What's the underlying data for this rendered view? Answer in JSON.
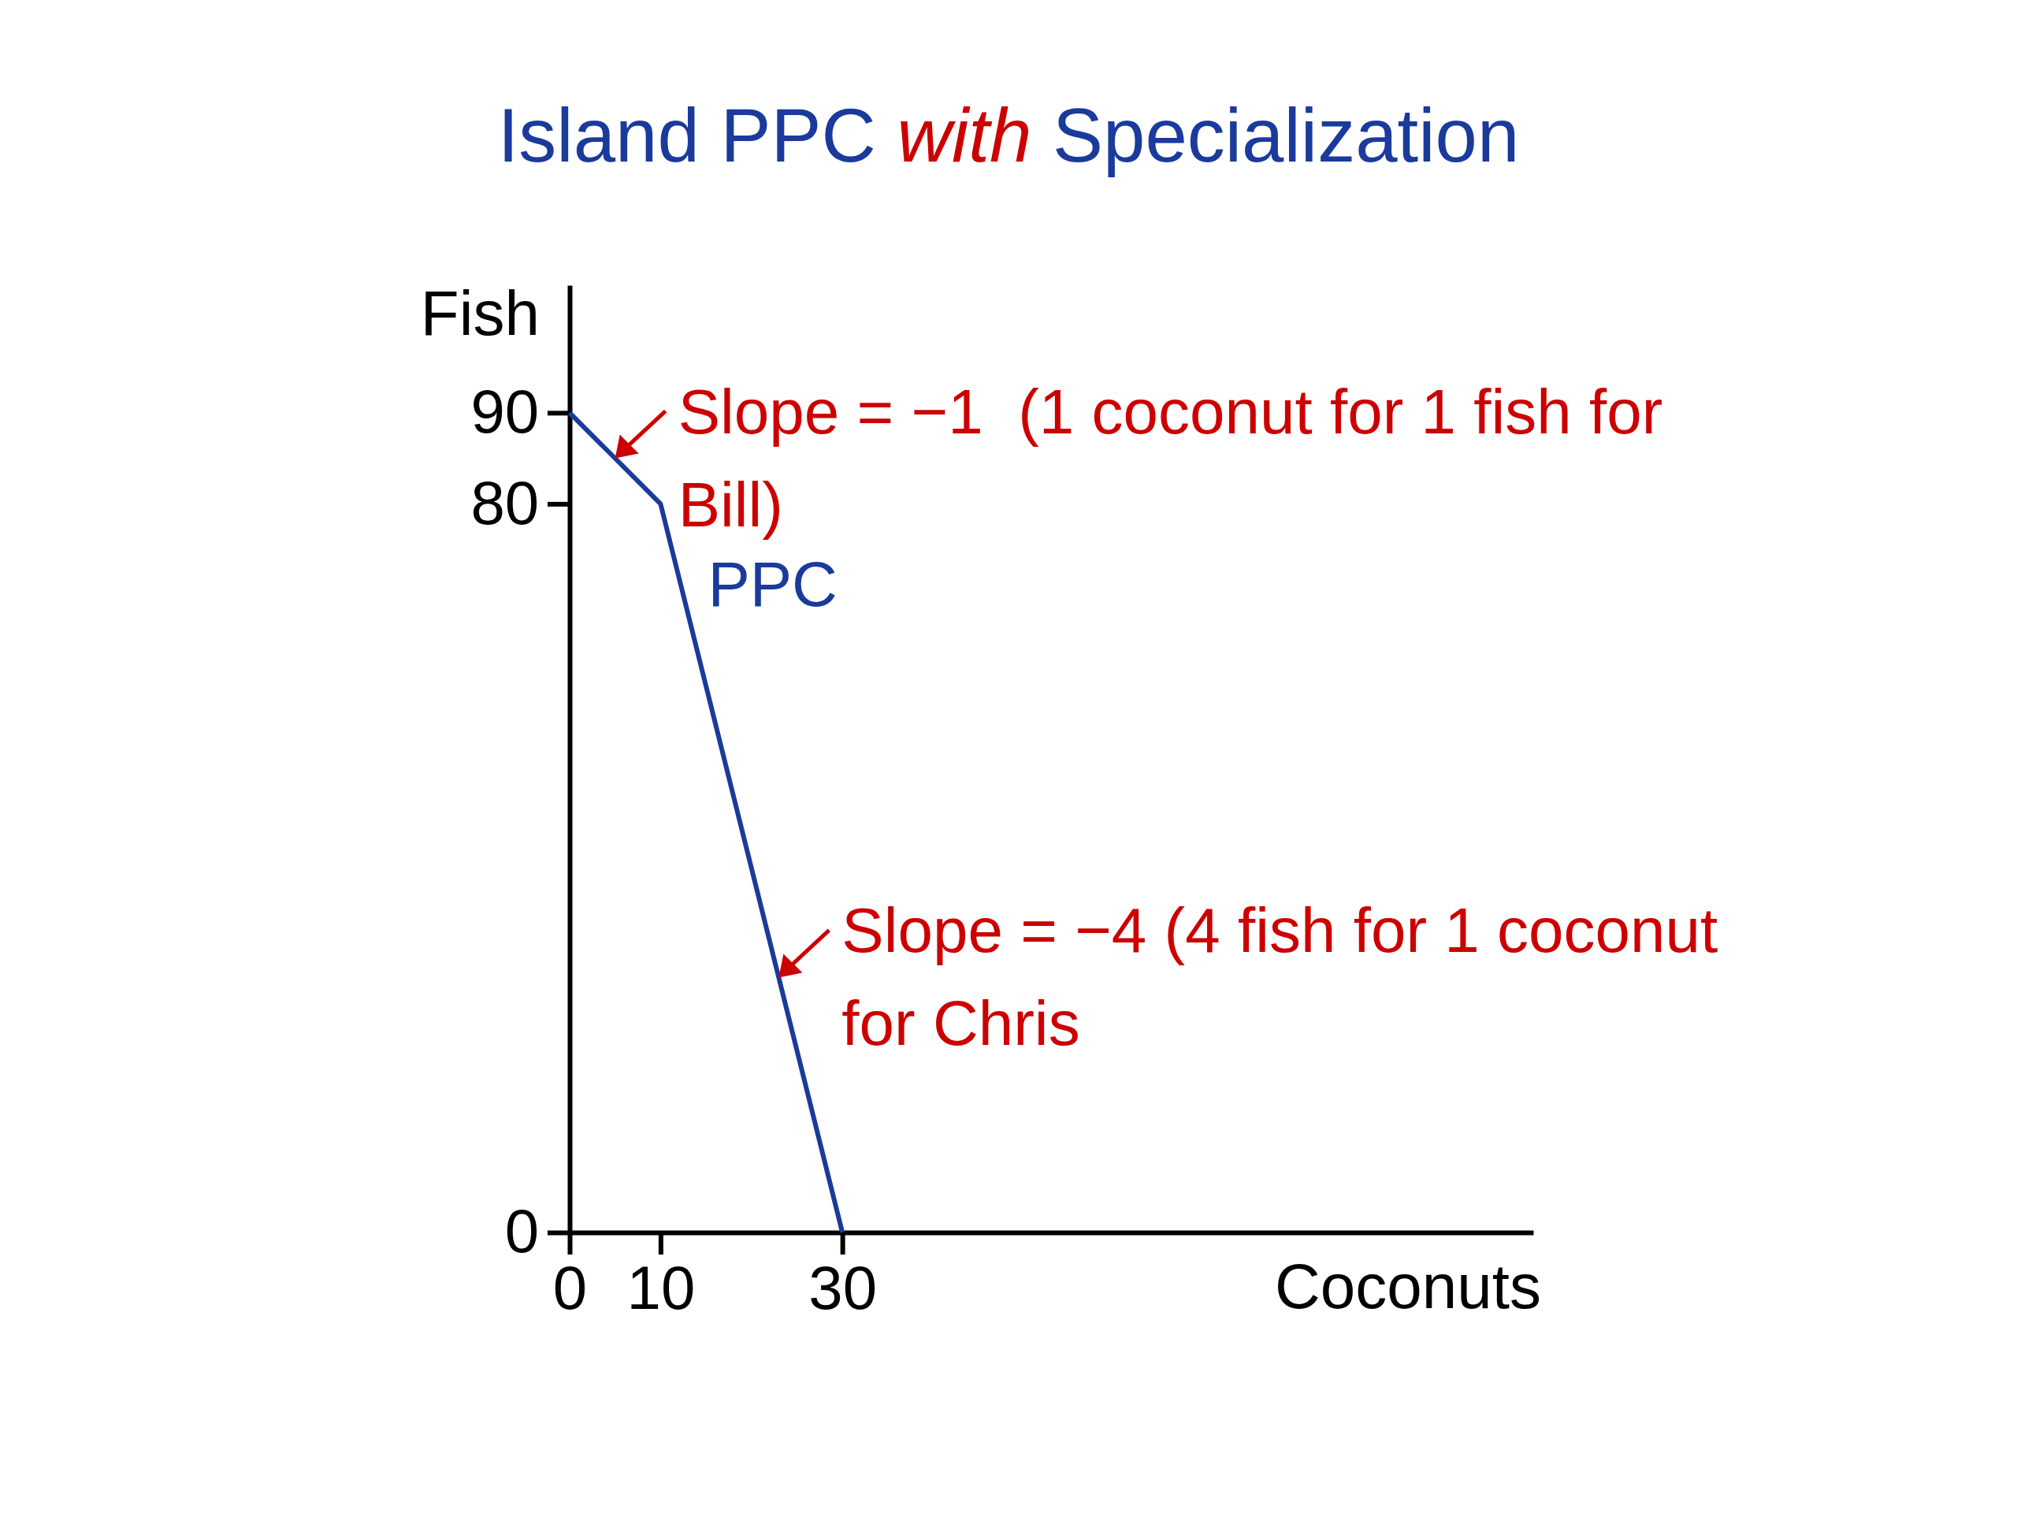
{
  "chart_data": {
    "type": "line",
    "title": "Island PPC with Specialization",
    "xlabel": "Coconuts",
    "ylabel": "Fish",
    "x": [
      0,
      10,
      30
    ],
    "series": [
      {
        "name": "PPC",
        "color": "#1a3a9c",
        "values": [
          90,
          80,
          0
        ]
      }
    ],
    "xlim": [
      0,
      106
    ],
    "ylim": [
      0,
      104
    ],
    "xticks": [
      0,
      10,
      30
    ],
    "yticks": [
      0,
      80,
      90
    ],
    "grid": false,
    "legend": false,
    "marker": "none",
    "line_style": "solid",
    "annotations": [
      {
        "text": "Slope = −1  (1 coconut for 1 fish for Bill)",
        "x": 5,
        "y": 85
      },
      {
        "text": "Slope = −4 (4 fish for 1 coconut for Chris",
        "x": 23,
        "y": 28
      }
    ]
  }
}
